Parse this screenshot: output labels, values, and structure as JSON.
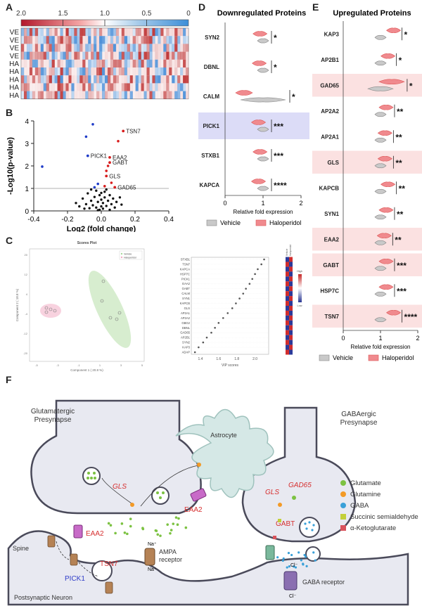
{
  "colors": {
    "vehicle": "#c9c9c9",
    "haloperidol": "#f08a8e",
    "down_highlight": "#dcdcf7",
    "up_highlight": "#fbe1e1",
    "glutamate": "#7cc242",
    "glutamine": "#f39a26",
    "gaba": "#3aa0d8",
    "ssa": "#c3cf39",
    "akg": "#d9535c"
  },
  "panelA": {
    "letter": "A",
    "scale_ticks": [
      "2.0",
      "1.5",
      "1.0",
      "0.5",
      "0"
    ],
    "row_labels": [
      "VE",
      "VE",
      "VE",
      "VE",
      "HA",
      "HA",
      "HA",
      "HA",
      "HA"
    ]
  },
  "panelB": {
    "letter": "B",
    "point_labels": [
      "TSN7",
      "PICK1",
      "EAA2",
      "GABT",
      "GLS",
      "GAD65"
    ],
    "chart_data": {
      "type": "scatter",
      "xlabel": "Log2 (fold change)",
      "ylabel": "-Log10(p-value)",
      "xlim": [
        -0.4,
        0.4
      ],
      "ylim": [
        0,
        4
      ],
      "xticks": [
        "-0.4",
        "-0.2",
        "0.0",
        "0.2",
        "0.4"
      ],
      "yticks": [
        "0",
        "1",
        "2",
        "3",
        "4"
      ],
      "threshold": 1.0,
      "labeled_points": [
        {
          "label": "TSN7",
          "x": 0.13,
          "y": 3.55,
          "color": "red"
        },
        {
          "label": "PICK1",
          "x": -0.08,
          "y": 2.45,
          "color": "blue"
        },
        {
          "label": "EAA2",
          "x": 0.05,
          "y": 2.38,
          "color": "red"
        },
        {
          "label": "GABT",
          "x": 0.05,
          "y": 2.15,
          "color": "red"
        },
        {
          "label": "GLS",
          "x": 0.03,
          "y": 1.55,
          "color": "red"
        },
        {
          "label": "GAD65",
          "x": 0.08,
          "y": 1.05,
          "color": "red"
        }
      ],
      "blue_points": [
        [
          -0.35,
          1.97
        ],
        [
          -0.05,
          3.85
        ],
        [
          -0.09,
          3.3
        ],
        [
          -0.02,
          1.2
        ],
        [
          -0.04,
          1.05
        ]
      ],
      "red_points": [
        [
          0.1,
          3.1
        ],
        [
          0.04,
          2.0
        ],
        [
          0.03,
          1.78
        ],
        [
          0.06,
          1.25
        ],
        [
          0.02,
          1.1
        ]
      ],
      "black_points": [
        [
          -0.15,
          0.35
        ],
        [
          -0.11,
          0.55
        ],
        [
          -0.08,
          0.78
        ],
        [
          -0.06,
          0.45
        ],
        [
          -0.05,
          0.25
        ],
        [
          -0.04,
          0.62
        ],
        [
          -0.03,
          0.15
        ],
        [
          -0.03,
          0.9
        ],
        [
          -0.02,
          0.4
        ],
        [
          -0.01,
          0.05
        ],
        [
          -0.01,
          0.7
        ],
        [
          0.0,
          0.2
        ],
        [
          0.0,
          0.5
        ],
        [
          0.01,
          0.1
        ],
        [
          0.01,
          0.35
        ],
        [
          0.02,
          0.6
        ],
        [
          0.02,
          0.85
        ],
        [
          0.03,
          0.22
        ],
        [
          0.04,
          0.45
        ],
        [
          0.05,
          0.05
        ],
        [
          0.05,
          0.7
        ],
        [
          0.06,
          0.3
        ],
        [
          0.07,
          0.55
        ],
        [
          0.08,
          0.15
        ],
        [
          0.09,
          0.4
        ],
        [
          0.11,
          0.6
        ],
        [
          -0.13,
          0.2
        ],
        [
          -0.09,
          0.3
        ],
        [
          -0.07,
          0.12
        ],
        [
          0.12,
          0.28
        ],
        [
          -0.06,
          0.95
        ],
        [
          0.0,
          0.8
        ],
        [
          -0.02,
          0.03
        ],
        [
          0.03,
          0.95
        ],
        [
          -0.1,
          0.1
        ]
      ]
    }
  },
  "panelC": {
    "letter": "C",
    "score_title": "Scores Plot",
    "score_legend": [
      "Vehicle",
      "Haloperidol"
    ],
    "score_xlabel": "Component 1 ( 20.8 %)",
    "score_ylabel": "Component 2 ( 18.8 %)",
    "vip_xlabel": "VIP scores",
    "vip_xticks": [
      "1.4",
      "1.6",
      "1.8",
      "2.0"
    ],
    "vip_heat_header": [
      "Vehicle",
      "Haloperidol"
    ],
    "vip_scale_labels": [
      "High",
      "Low"
    ],
    "vip_proteins": [
      "STXB1",
      "TSN7",
      "KAPCA",
      "HSP7C",
      "PICK1",
      "EAA2",
      "GABT",
      "CALM",
      "SYN1",
      "KAPCB",
      "GLS",
      "AP2A1",
      "AP2A2",
      "GBG2",
      "DBNL",
      "GAD65",
      "AP2B1",
      "SYN2",
      "KAP3",
      "ADAP"
    ],
    "vip_scores": [
      2.1,
      2.07,
      2.03,
      2.0,
      1.97,
      1.94,
      1.9,
      1.87,
      1.83,
      1.79,
      1.75,
      1.7,
      1.65,
      1.6,
      1.56,
      1.52,
      1.47,
      1.43,
      1.38,
      1.34
    ]
  },
  "panelD": {
    "letter": "D",
    "title": "Downregulated Proteins",
    "xlabel": "Relative fold expression",
    "xticks": [
      "0",
      "1",
      "2"
    ],
    "legend": [
      "Vehicle",
      "Haloperidol"
    ],
    "proteins": [
      {
        "name": "SYN2",
        "sig": "*",
        "halo": 0.92,
        "veh": 1.0,
        "highlight": false
      },
      {
        "name": "DBNL",
        "sig": "*",
        "halo": 0.9,
        "veh": 1.0,
        "highlight": false
      },
      {
        "name": "CALM",
        "sig": "*",
        "halo": 0.5,
        "veh": 1.0,
        "highlight": false
      },
      {
        "name": "PICK1",
        "sig": "***",
        "halo": 0.88,
        "veh": 1.0,
        "highlight": true
      },
      {
        "name": "STXB1",
        "sig": "***",
        "halo": 0.92,
        "veh": 1.0,
        "highlight": false
      },
      {
        "name": "KAPCA",
        "sig": "****",
        "halo": 0.88,
        "veh": 1.0,
        "highlight": false
      }
    ]
  },
  "panelE": {
    "letter": "E",
    "title": "Upregulated Proteins",
    "xlabel": "Relative fold expression",
    "xticks": [
      "0",
      "1",
      "2"
    ],
    "legend": [
      "Vehicle",
      "Haloperidol"
    ],
    "proteins": [
      {
        "name": "KAP3",
        "sig": "*",
        "halo": 1.35,
        "veh": 1.0,
        "highlight": false
      },
      {
        "name": "AP2B1",
        "sig": "*",
        "halo": 1.2,
        "veh": 1.0,
        "highlight": false
      },
      {
        "name": "GAD65",
        "sig": "*",
        "halo": 1.3,
        "veh": 1.0,
        "highlight": true
      },
      {
        "name": "AP2A2",
        "sig": "**",
        "halo": 1.15,
        "veh": 1.0,
        "highlight": false
      },
      {
        "name": "AP2A1",
        "sig": "**",
        "halo": 1.12,
        "veh": 1.0,
        "highlight": false
      },
      {
        "name": "GLS",
        "sig": "**",
        "halo": 1.12,
        "veh": 1.0,
        "highlight": true
      },
      {
        "name": "KAPCB",
        "sig": "**",
        "halo": 1.2,
        "veh": 1.0,
        "highlight": false
      },
      {
        "name": "SYN1",
        "sig": "**",
        "halo": 1.15,
        "veh": 1.0,
        "highlight": false
      },
      {
        "name": "EAA2",
        "sig": "**",
        "halo": 1.1,
        "veh": 1.0,
        "highlight": true
      },
      {
        "name": "GABT",
        "sig": "***",
        "halo": 1.15,
        "veh": 1.0,
        "highlight": true
      },
      {
        "name": "HSP7C",
        "sig": "***",
        "halo": 1.15,
        "veh": 1.0,
        "highlight": false
      },
      {
        "name": "TSN7",
        "sig": "****",
        "halo": 1.35,
        "veh": 1.0,
        "highlight": true
      }
    ]
  },
  "panelF": {
    "letter": "F",
    "glut_pre": "Glutamatergic\nPresynapse",
    "gaba_pre": "GABAergic\nPresynapse",
    "astrocyte": "Astrocyte",
    "spine": "Spine",
    "postsyn": "Postsynaptic Neuron",
    "labels": {
      "gls_left": "GLS",
      "eaa2_left": "EAA2",
      "eaa2_right": "EAA2",
      "pick1": "PICK1",
      "tsn7": "TSN7",
      "ampa": "AMPA\nreceptor",
      "na_plus": "Na⁺",
      "na_plus2": "Na⁺",
      "gls_right": "GLS",
      "gad65": "GAD65",
      "gabt": "GABT",
      "gaba_receptor": "GABA receptor",
      "cl_minus": "Cl⁻",
      "cl_minus2": "Cl⁻"
    },
    "legend": [
      "Glutamate",
      "Glutamine",
      "GABA",
      "Succinic semialdehyde",
      "α-Ketoglutarate"
    ]
  }
}
